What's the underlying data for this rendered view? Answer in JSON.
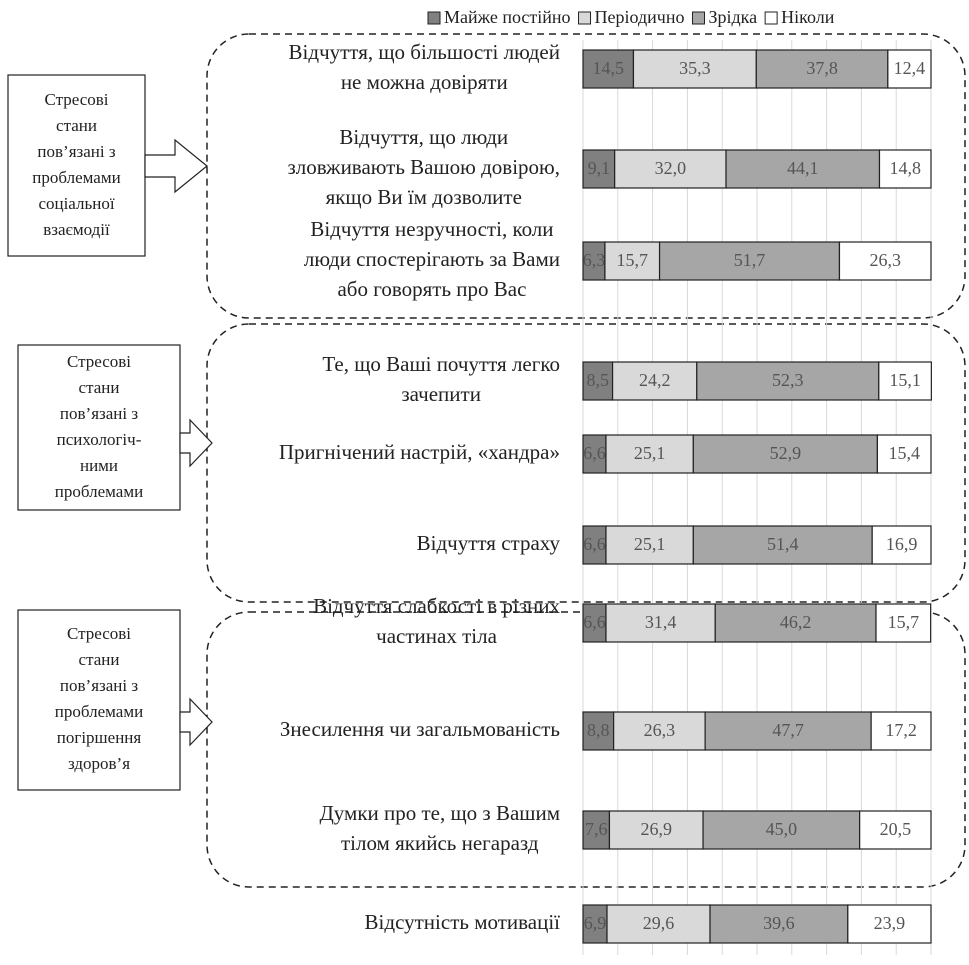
{
  "chart_data": {
    "type": "stacked_barh",
    "categories": [
      "Відчуття, що більшості людей\nне можна довіряти",
      "Відчуття, що люди\nзловживають Вашою довірою,\nякщо Ви їм дозволите",
      "Відчуття незручності, коли\nлюди спостерігають за Вами\nабо говорять про Вас",
      "Те, що Ваші почуття легко\nзачепити",
      "Пригнічений настрій, «хандра»",
      "Відчуття страху",
      "Відчуття слабкості в різних\nчастинах тіла",
      "Знесилення чи загальмованість",
      "Думки про те, що з Вашим\nтілом якийсь негаразд",
      "Відсутність мотивації"
    ],
    "series": [
      {
        "name": "Майже постійно",
        "color": "#808080",
        "values": [
          14.5,
          9.1,
          6.3,
          8.5,
          6.6,
          6.6,
          6.6,
          8.8,
          7.6,
          6.9
        ],
        "value_labels": [
          "14,5",
          "9,1",
          "6,3",
          "8,5",
          "6,6",
          "6,6",
          "6,6",
          "8,8",
          "7,6",
          "6,9"
        ]
      },
      {
        "name": "Періодично",
        "color": "#d9d9d9",
        "values": [
          35.3,
          32.0,
          15.7,
          24.2,
          25.1,
          25.1,
          31.4,
          26.3,
          26.9,
          29.6
        ],
        "value_labels": [
          "35,3",
          "32,0",
          "15,7",
          "24,2",
          "25,1",
          "25,1",
          "31,4",
          "26,3",
          "26,9",
          "29,6"
        ]
      },
      {
        "name": "Зрідка",
        "color": "#a6a6a6",
        "values": [
          37.8,
          44.1,
          51.7,
          52.3,
          52.9,
          51.4,
          46.2,
          47.7,
          45.0,
          39.6
        ],
        "value_labels": [
          "37,8",
          "44,1",
          "51,7",
          "52,3",
          "52,9",
          "51,4",
          "46,2",
          "47,7",
          "45,0",
          "39,6"
        ]
      },
      {
        "name": "Ніколи",
        "color": "#ffffff",
        "values": [
          12.4,
          14.8,
          26.3,
          15.1,
          15.4,
          16.9,
          15.7,
          17.2,
          20.5,
          23.9
        ],
        "value_labels": [
          "12,4",
          "14,8",
          "26,3",
          "15,1",
          "15,4",
          "16,9",
          "15,7",
          "17,2",
          "20,5",
          "23,9"
        ]
      }
    ],
    "xlim": [
      0,
      100
    ],
    "xticks": [
      0,
      10,
      20,
      30,
      40,
      50,
      60,
      70,
      80,
      90,
      100
    ],
    "grid": true,
    "groups": [
      "Стресові\nстани\nпов’язані з\nпроблемами\nсоціальної\nвзаємодії",
      "Стресові\nстани\nпов’язані з\nпсихологіч-\nними\nпроблемами",
      "Стресові\nстани\nпов’язані з\nпроблемами\nпогіршення\nздоров’я"
    ]
  }
}
